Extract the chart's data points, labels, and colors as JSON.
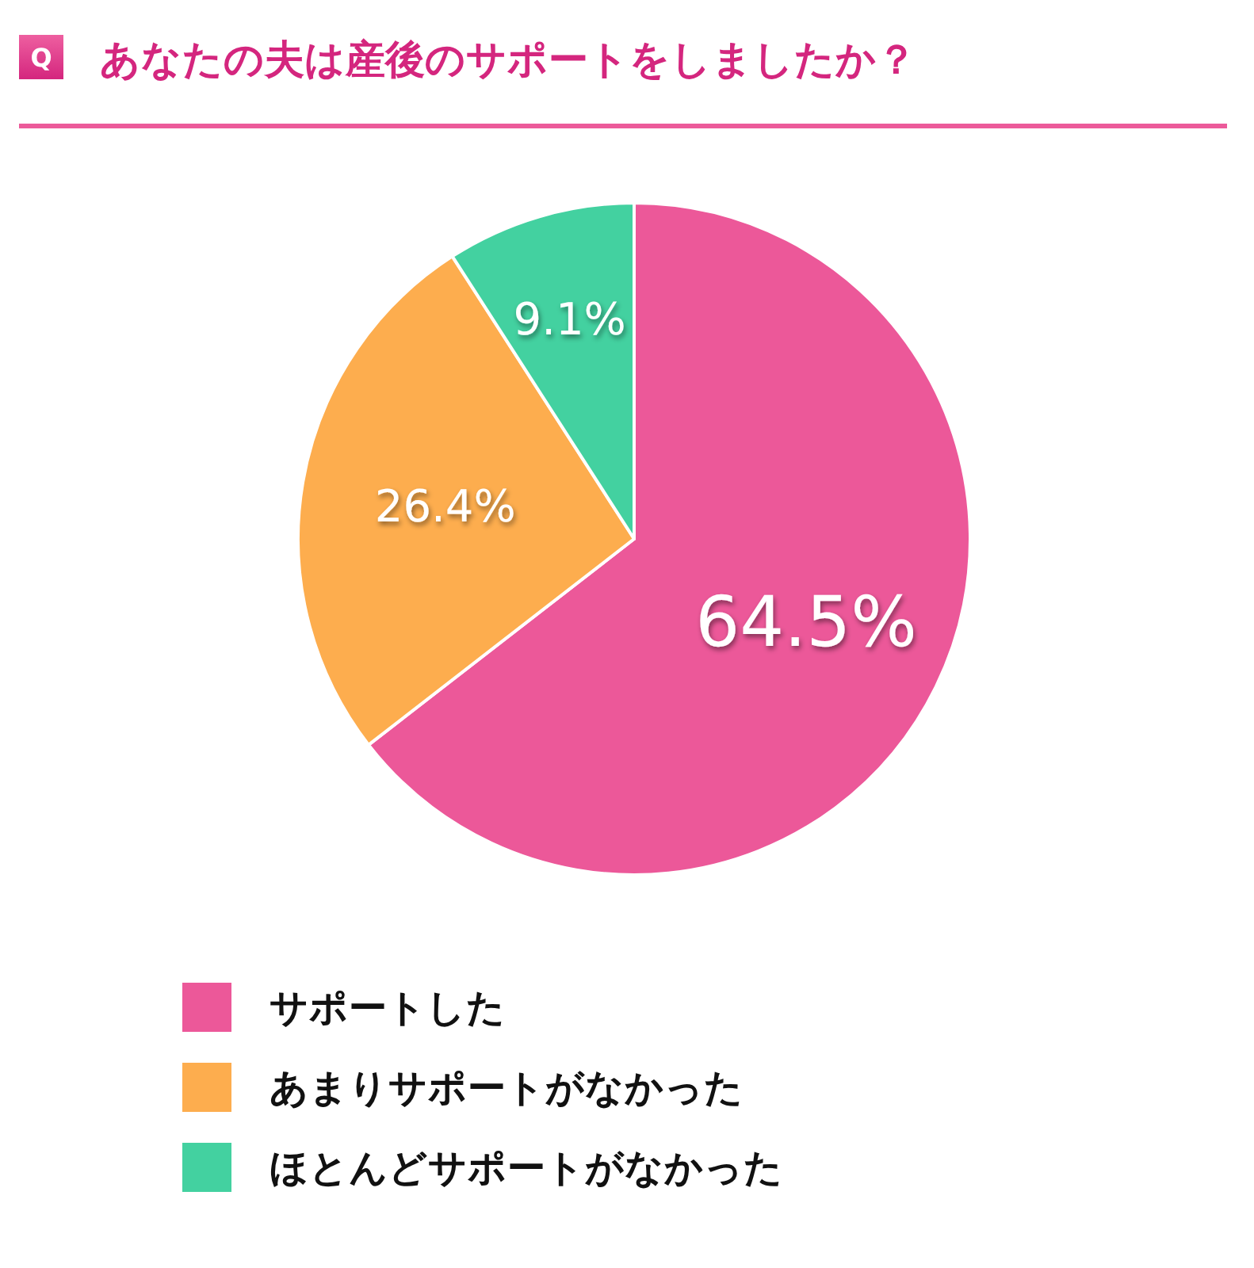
{
  "chart_data": {
    "type": "pie",
    "title": "あなたの夫は産後のサポートをしましたか？",
    "annotations": [
      "Q"
    ],
    "categories": [
      "サポートした",
      "あまりサポートがなかった",
      "ほとんどサポートがなかった"
    ],
    "values": [
      64.5,
      26.4,
      9.1
    ],
    "value_labels": [
      "64.5%",
      "26.4%",
      "9.1%"
    ],
    "colors": [
      "#ec5899",
      "#fdad4e",
      "#43d1a0"
    ],
    "legend": "bottom"
  }
}
